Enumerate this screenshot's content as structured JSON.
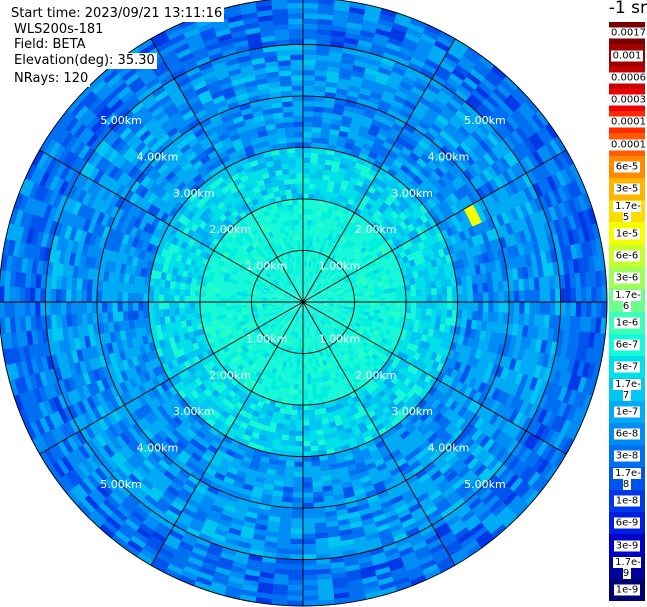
{
  "header": {
    "start_time": "Start time: 2023/09/21 13:11:16",
    "instrument": "WLS200s-181",
    "field": "Field: BETA",
    "elevation": "Elevation(deg): 35.30",
    "nrays": "NRays: 120"
  },
  "colorbar": {
    "title": "-1 sr",
    "bins": [
      {
        "label": "0.0017",
        "color": "#7a0000"
      },
      {
        "label": "0.001",
        "color": "#a00000"
      },
      {
        "label": "0.0006",
        "color": "#c80000"
      },
      {
        "label": "0.0003",
        "color": "#ee0000"
      },
      {
        "label": "0.00017",
        "color": "#ff2a00"
      },
      {
        "label": "0.0001",
        "color": "#ff5a00"
      },
      {
        "label": "6e-5",
        "color": "#ff8a00"
      },
      {
        "label": "3e-5",
        "color": "#ffb400"
      },
      {
        "label": "1.7e-5",
        "color": "#ffdc00"
      },
      {
        "label": "1e-5",
        "color": "#f5ff00"
      },
      {
        "label": "6e-6",
        "color": "#c8ff2a"
      },
      {
        "label": "3e-6",
        "color": "#9cff5a"
      },
      {
        "label": "1.7e-6",
        "color": "#6cff8a"
      },
      {
        "label": "1e-6",
        "color": "#3cffb8"
      },
      {
        "label": "6e-7",
        "color": "#16f8d8"
      },
      {
        "label": "3e-7",
        "color": "#00e0e8"
      },
      {
        "label": "1.7e-7",
        "color": "#00c6f2"
      },
      {
        "label": "1e-7",
        "color": "#00aaf5"
      },
      {
        "label": "6e-8",
        "color": "#008cf5"
      },
      {
        "label": "3e-8",
        "color": "#0070f2"
      },
      {
        "label": "1.7e-8",
        "color": "#0054ee"
      },
      {
        "label": "1e-8",
        "color": "#0038e8"
      },
      {
        "label": "6e-9",
        "color": "#001ede"
      },
      {
        "label": "3e-9",
        "color": "#0000c8"
      },
      {
        "label": "1.7e-9",
        "color": "#00009c"
      },
      {
        "label": "1e-9",
        "color": "#000070"
      }
    ]
  },
  "chart_data": {
    "type": "heatmap",
    "title": "",
    "xlabel": "",
    "ylabel": "",
    "projection": "polar",
    "grid": true,
    "rays": 120,
    "spokes_deg": [
      0,
      30,
      60,
      90,
      120,
      150
    ],
    "range_rings": [
      1.0,
      2.0,
      3.0,
      4.0,
      5.0
    ],
    "ring_labels": [
      "1.00km",
      "2.00km",
      "3.00km",
      "4.00km",
      "5.00km"
    ],
    "max_range_km": 5.9,
    "units": "-1 sr",
    "regions": [
      {
        "from_km": 0.0,
        "to_km": 2.0,
        "beta": "6e-7 to 3e-7"
      },
      {
        "from_km": 2.0,
        "to_km": 3.0,
        "beta": "3e-7 to 1.7e-7"
      },
      {
        "from_km": 3.0,
        "to_km": 5.0,
        "beta": "1e-7 to 3e-8"
      },
      {
        "from_km": 5.0,
        "to_km": 5.9,
        "beta": "6e-8 to 1.7e-8"
      }
    ],
    "hotspot": {
      "azimuth_deg": 62,
      "range_km": 3.7,
      "beta": "1e-5"
    },
    "colors": {
      "background": "#ffffff",
      "grid": "#000000"
    }
  }
}
